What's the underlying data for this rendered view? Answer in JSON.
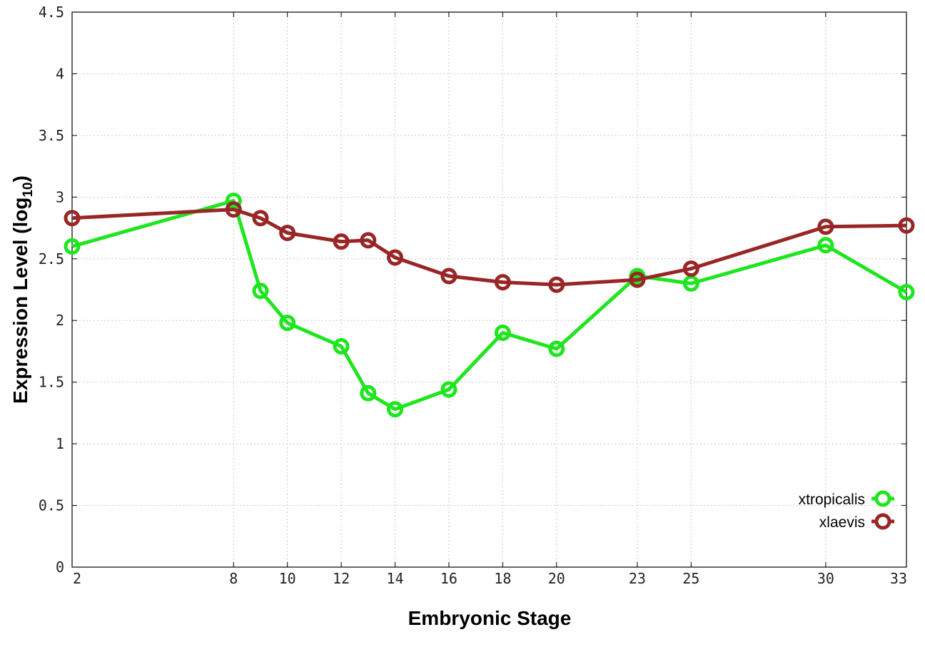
{
  "chart_data": {
    "type": "line",
    "xlabel": "Embryonic Stage",
    "ylabel": "Expression Level (log",
    "ylabel_sub": "10",
    "ylabel_close": ")",
    "xlim": [
      2,
      33
    ],
    "ylim": [
      0,
      4.5
    ],
    "x_ticks": [
      2,
      8,
      10,
      12,
      14,
      16,
      18,
      20,
      23,
      25,
      30,
      33
    ],
    "y_ticks": [
      0,
      0.5,
      1,
      1.5,
      2,
      2.5,
      3,
      3.5,
      4,
      4.5
    ],
    "y_tick_labels": [
      "0",
      "0.5",
      "1",
      "1.5",
      "2",
      "2.5",
      "3",
      "3.5",
      "4",
      "4.5"
    ],
    "grid": true,
    "legend_position": "bottom-right",
    "series": [
      {
        "name": "xtropicalis",
        "color": "#1ee61e",
        "x": [
          2,
          8,
          9,
          10,
          12,
          13,
          14,
          16,
          18,
          20,
          23,
          25,
          30,
          33
        ],
        "y": [
          2.6,
          2.97,
          2.24,
          1.98,
          1.79,
          1.41,
          1.28,
          1.44,
          1.9,
          1.77,
          2.36,
          2.3,
          2.61,
          2.23
        ]
      },
      {
        "name": "xlaevis",
        "color": "#992626",
        "x": [
          2,
          8,
          9,
          10,
          12,
          13,
          14,
          16,
          18,
          20,
          23,
          25,
          30,
          33
        ],
        "y": [
          2.83,
          2.9,
          2.83,
          2.71,
          2.64,
          2.65,
          2.51,
          2.36,
          2.31,
          2.29,
          2.33,
          2.42,
          2.76,
          2.77
        ]
      }
    ]
  }
}
